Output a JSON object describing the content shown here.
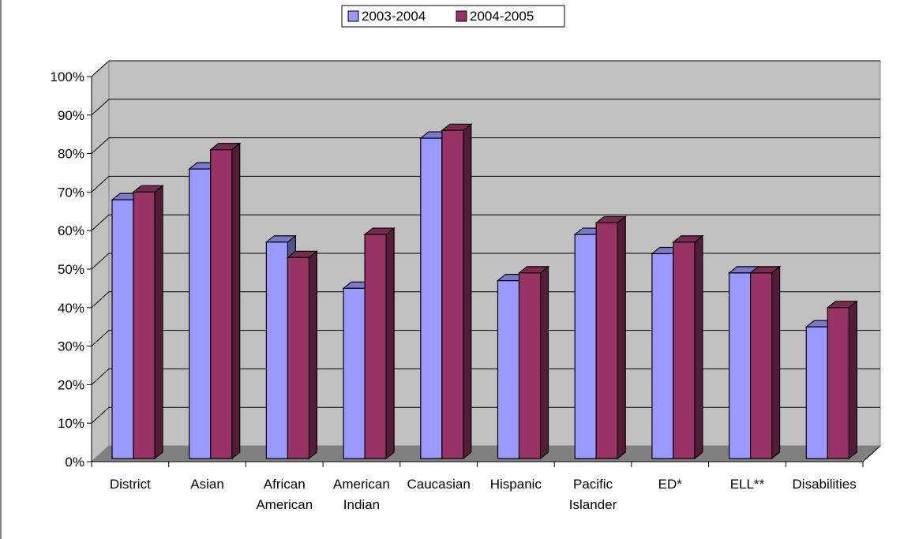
{
  "chart_data": {
    "type": "bar",
    "title": "",
    "xlabel": "",
    "ylabel": "",
    "ylim": [
      0,
      100
    ],
    "y_ticks": [
      "0%",
      "10%",
      "20%",
      "30%",
      "40%",
      "50%",
      "60%",
      "70%",
      "80%",
      "90%",
      "100%"
    ],
    "grid": true,
    "legend_position": "top-center",
    "categories": [
      [
        "District"
      ],
      [
        "Asian"
      ],
      [
        "African",
        "American"
      ],
      [
        "American",
        "Indian"
      ],
      [
        "Caucasian"
      ],
      [
        "Hispanic"
      ],
      [
        "Pacific",
        "Islander"
      ],
      [
        "ED*"
      ],
      [
        "ELL**"
      ],
      [
        "Disabilities"
      ]
    ],
    "series": [
      {
        "name": "2003-2004",
        "color": "#9999FF",
        "values": [
          68,
          76,
          57,
          45,
          84,
          47,
          59,
          54,
          49,
          35
        ]
      },
      {
        "name": "2004-2005",
        "color": "#993366",
        "values": [
          70,
          81,
          53,
          59,
          86,
          49,
          62,
          57,
          49,
          40
        ]
      }
    ],
    "colors": {
      "wall": "#C0C0C0",
      "floor": "#808080",
      "gridline": "#000000",
      "outline": "#000000"
    }
  }
}
